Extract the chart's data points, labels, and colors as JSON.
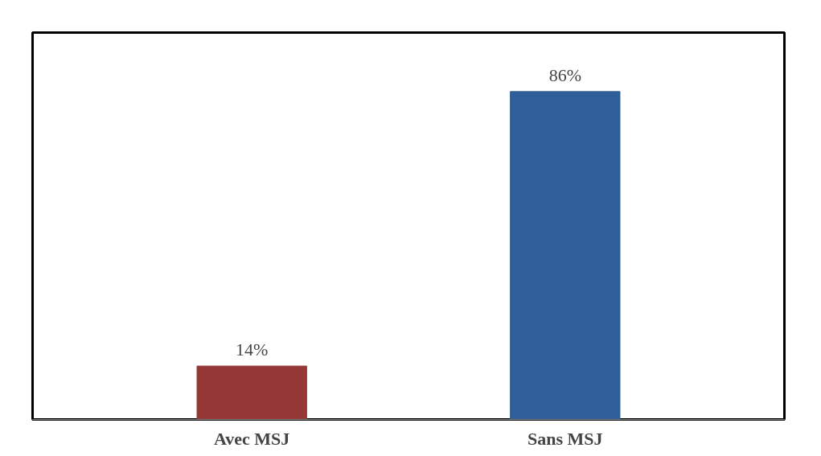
{
  "chart_data": {
    "type": "bar",
    "categories": [
      "Avec MSJ",
      "Sans MSJ"
    ],
    "values": [
      14,
      86
    ],
    "colors": [
      "#953735",
      "#2f5f98"
    ],
    "value_labels": [
      "14%",
      "86%"
    ]
  }
}
